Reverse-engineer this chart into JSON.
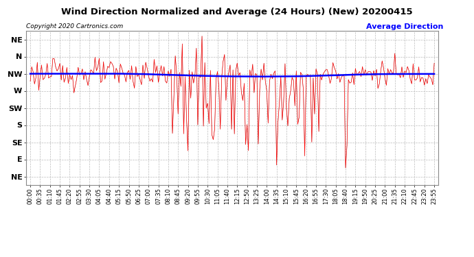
{
  "title": "Wind Direction Normalized and Average (24 Hours) (New) 20200415",
  "copyright_text": "Copyright 2020 Cartronics.com",
  "legend_text": "Average Direction",
  "background_color": "#ffffff",
  "plot_bg_color": "#ffffff",
  "grid_color": "#bbbbbb",
  "title_color": "#000000",
  "copyright_color": "#000000",
  "legend_color": "#0000ff",
  "wind_line_color": "#ff0000",
  "avg_line_color": "#0000ff",
  "dark_line_color": "#111111",
  "ytick_labels": [
    "NE",
    "N",
    "NW",
    "W",
    "SW",
    "S",
    "SE",
    "E",
    "NE"
  ],
  "ytick_values": [
    9,
    8,
    7,
    6,
    5,
    4,
    3,
    2,
    1
  ],
  "ylim": [
    0.5,
    9.5
  ],
  "num_points": 288,
  "nw_value": 7.0,
  "seed": 123,
  "figwidth": 6.9,
  "figheight": 3.75,
  "dpi": 100
}
